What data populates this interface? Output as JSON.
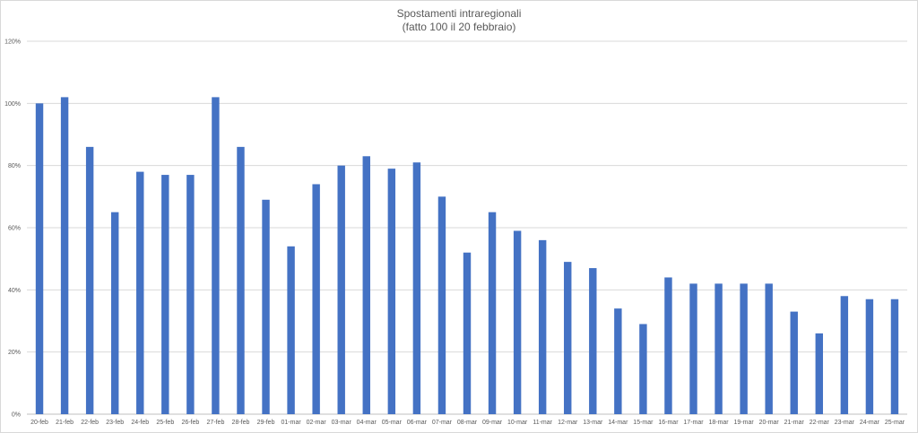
{
  "chart_data": {
    "type": "bar",
    "title": "Spostamenti intraregionali",
    "subtitle": "(fatto 100 il 20 febbraio)",
    "xlabel": "",
    "ylabel": "",
    "ylim": [
      0,
      120
    ],
    "y_ticks": [
      "0%",
      "20%",
      "40%",
      "60%",
      "80%",
      "100%",
      "120%"
    ],
    "grid": true,
    "bar_color": "#4472C4",
    "categories": [
      "20-feb",
      "21-feb",
      "22-feb",
      "23-feb",
      "24-feb",
      "25-feb",
      "26-feb",
      "27-feb",
      "28-feb",
      "29-feb",
      "01-mar",
      "02-mar",
      "03-mar",
      "04-mar",
      "05-mar",
      "06-mar",
      "07-mar",
      "08-mar",
      "09-mar",
      "10-mar",
      "11-mar",
      "12-mar",
      "13-mar",
      "14-mar",
      "15-mar",
      "16-mar",
      "17-mar",
      "18-mar",
      "19-mar",
      "20-mar",
      "21-mar",
      "22-mar",
      "23-mar",
      "24-mar",
      "25-mar"
    ],
    "values": [
      100,
      102,
      86,
      65,
      78,
      77,
      77,
      102,
      86,
      69,
      54,
      74,
      80,
      83,
      79,
      81,
      70,
      52,
      65,
      59,
      56,
      49,
      47,
      34,
      29,
      44,
      42,
      42,
      42,
      42,
      33,
      26,
      38,
      37,
      37
    ]
  }
}
